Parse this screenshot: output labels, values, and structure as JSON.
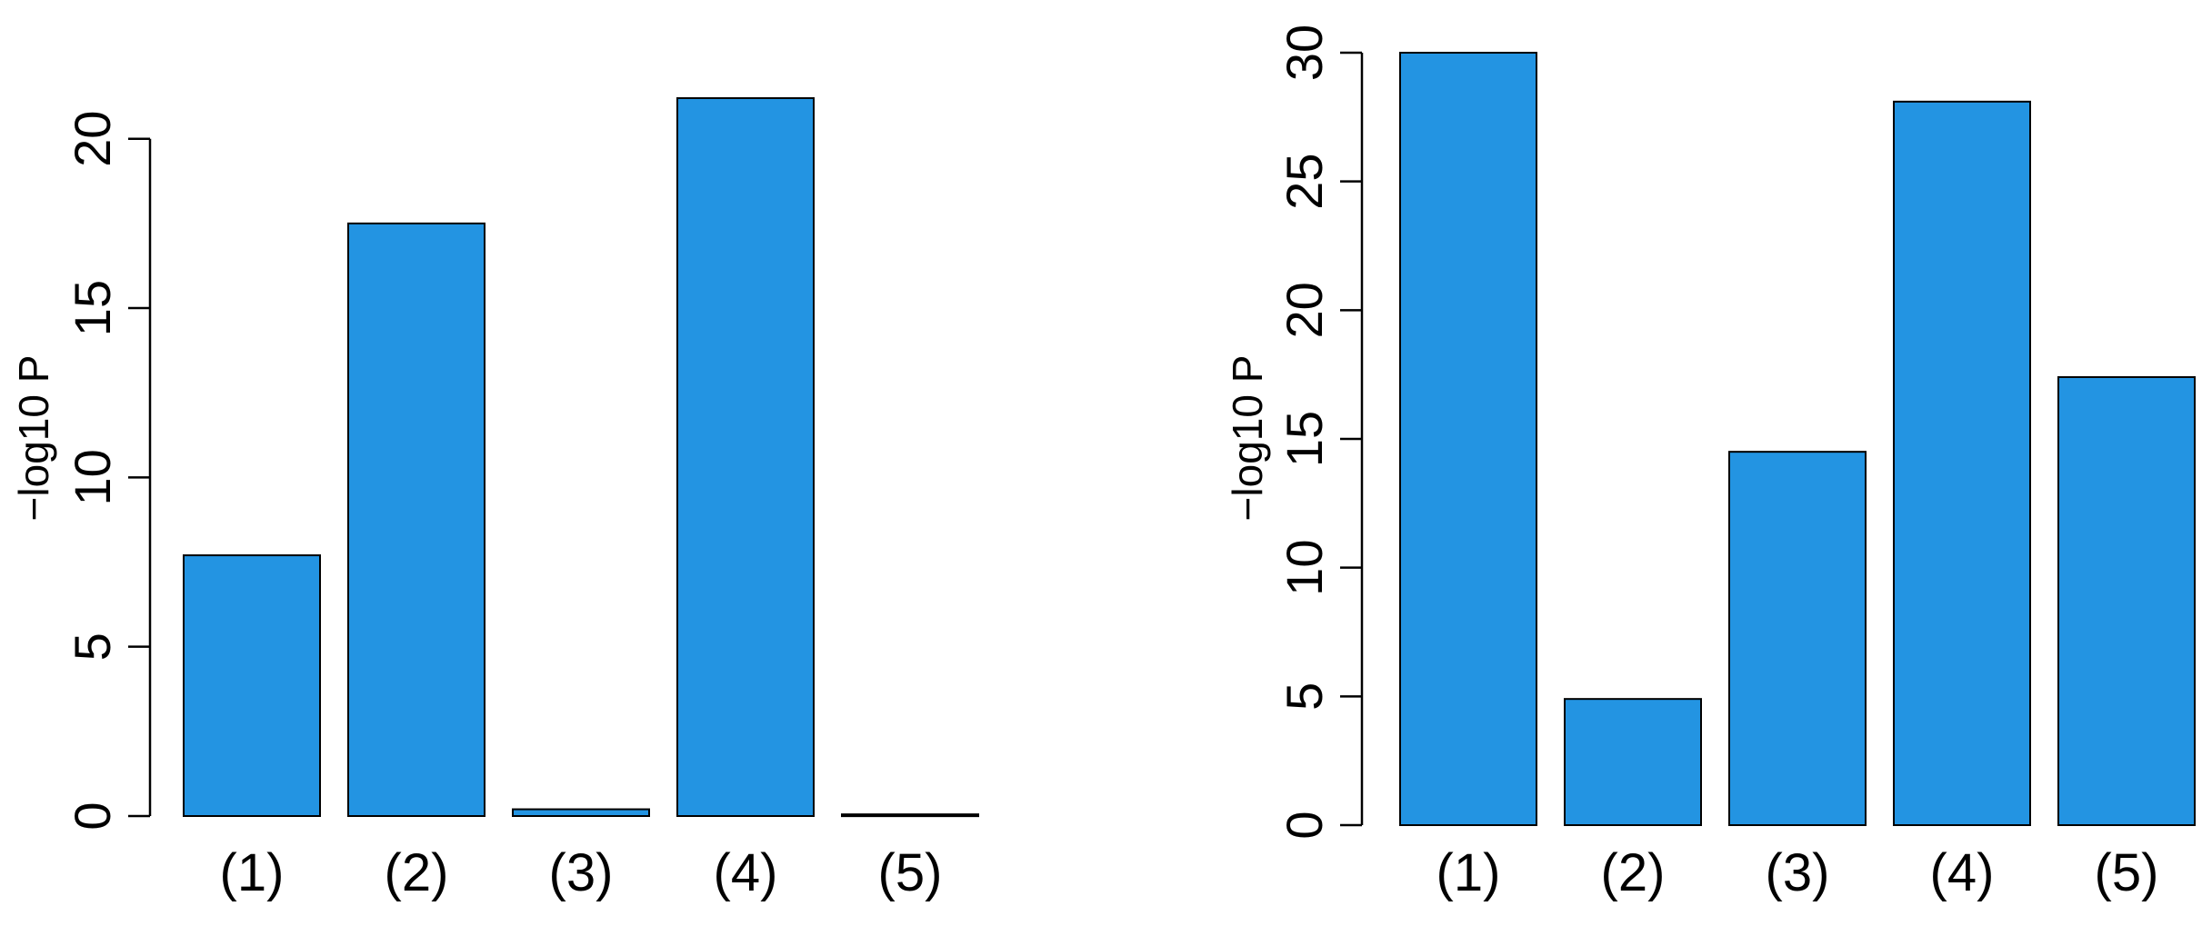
{
  "bar_color": "#2394E2",
  "chart_data": [
    {
      "type": "bar",
      "categories": [
        "(1)",
        "(2)",
        "(3)",
        "(4)",
        "(5)"
      ],
      "values": [
        7.7,
        17.5,
        0.2,
        21.2,
        0.05
      ],
      "title": "",
      "xlabel": "",
      "ylabel": "−log10 P",
      "yticks": [
        "0",
        "5",
        "10",
        "15",
        "20"
      ],
      "ylim": [
        0,
        21.2
      ],
      "grid": false
    },
    {
      "type": "bar",
      "categories": [
        "(1)",
        "(2)",
        "(3)",
        "(4)",
        "(5)"
      ],
      "values": [
        30.0,
        4.9,
        14.5,
        28.1,
        17.4
      ],
      "title": "",
      "xlabel": "",
      "ylabel": "−log10 P",
      "yticks": [
        "0",
        "5",
        "10",
        "15",
        "20",
        "25",
        "30"
      ],
      "ylim": [
        0,
        30
      ],
      "grid": false
    }
  ]
}
